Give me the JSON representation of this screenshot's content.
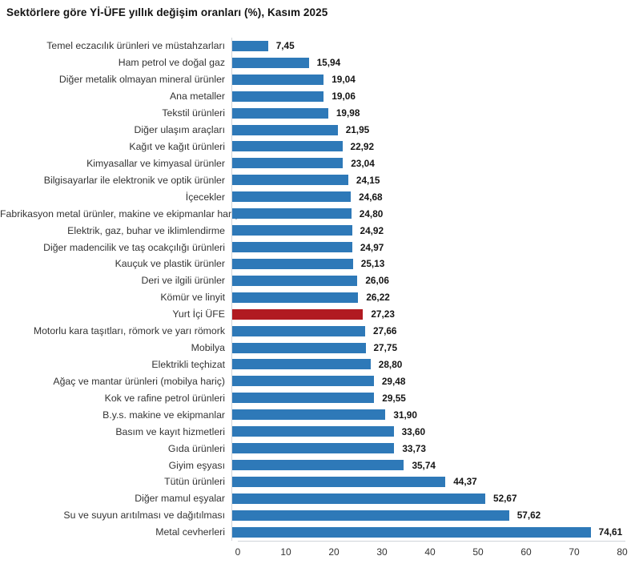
{
  "page": {
    "background": "#ffffff"
  },
  "chart_data": {
    "type": "bar",
    "orientation": "horizontal",
    "title": "Sektörlere göre Yİ-ÜFE yıllık değişim oranları (%), Kasım 2025",
    "categories": [
      "Temel eczacılık ürünleri ve müstahzarları",
      "Ham petrol ve doğal gaz",
      "Diğer metalik olmayan mineral ürünler",
      "Ana metaller",
      "Tekstil ürünleri",
      "Diğer ulaşım araçları",
      "Kağıt ve kağıt ürünleri",
      "Kimyasallar ve kimyasal ürünler",
      "Bilgisayarlar ile elektronik ve optik ürünler",
      "İçecekler",
      "Fabrikasyon metal ürünler, makine ve ekipmanlar hariç",
      "Elektrik, gaz, buhar ve iklimlendirme",
      "Diğer madencilik ve taş ocakçılığı ürünleri",
      "Kauçuk ve plastik ürünler",
      "Deri ve ilgili ürünler",
      "Kömür ve linyit",
      "Yurt İçi ÜFE",
      "Motorlu kara taşıtları, römork ve yarı römork",
      "Mobilya",
      "Elektrikli teçhizat",
      "Ağaç ve mantar ürünleri (mobilya hariç)",
      "Kok ve rafine petrol ürünleri",
      "B.y.s. makine ve ekipmanlar",
      "Basım ve kayıt hizmetleri",
      "Gıda ürünleri",
      "Giyim eşyası",
      "Tütün ürünleri",
      "Diğer mamul eşyalar",
      "Su ve suyun arıtılması ve dağıtılması",
      "Metal cevherleri"
    ],
    "values": [
      7.45,
      15.94,
      19.04,
      19.06,
      19.98,
      21.95,
      22.92,
      23.04,
      24.15,
      24.68,
      24.8,
      24.92,
      24.97,
      25.13,
      26.06,
      26.22,
      27.23,
      27.66,
      27.75,
      28.8,
      29.48,
      29.55,
      31.9,
      33.6,
      33.73,
      35.74,
      44.37,
      52.67,
      57.62,
      74.61
    ],
    "value_labels": [
      "7,45",
      "15,94",
      "19,04",
      "19,06",
      "19,98",
      "21,95",
      "22,92",
      "23,04",
      "24,15",
      "24,68",
      "24,80",
      "24,92",
      "24,97",
      "25,13",
      "26,06",
      "26,22",
      "27,23",
      "27,66",
      "27,75",
      "28,80",
      "29,48",
      "29,55",
      "31,90",
      "33,60",
      "33,73",
      "35,74",
      "44,37",
      "52,67",
      "57,62",
      "74,61"
    ],
    "highlight": {
      "category": "Yurt İçi ÜFE",
      "index": 16,
      "color": "#b11a21"
    },
    "bar_color": "#2e79b8",
    "axis_line_color": "#cfd4d9",
    "xlabel": "",
    "ylabel": "",
    "xlim": [
      0,
      80
    ],
    "x_ticks": [
      0,
      10,
      20,
      30,
      40,
      50,
      60,
      70,
      80
    ],
    "grid": false,
    "legend": "none",
    "value_labels_shown": true
  }
}
